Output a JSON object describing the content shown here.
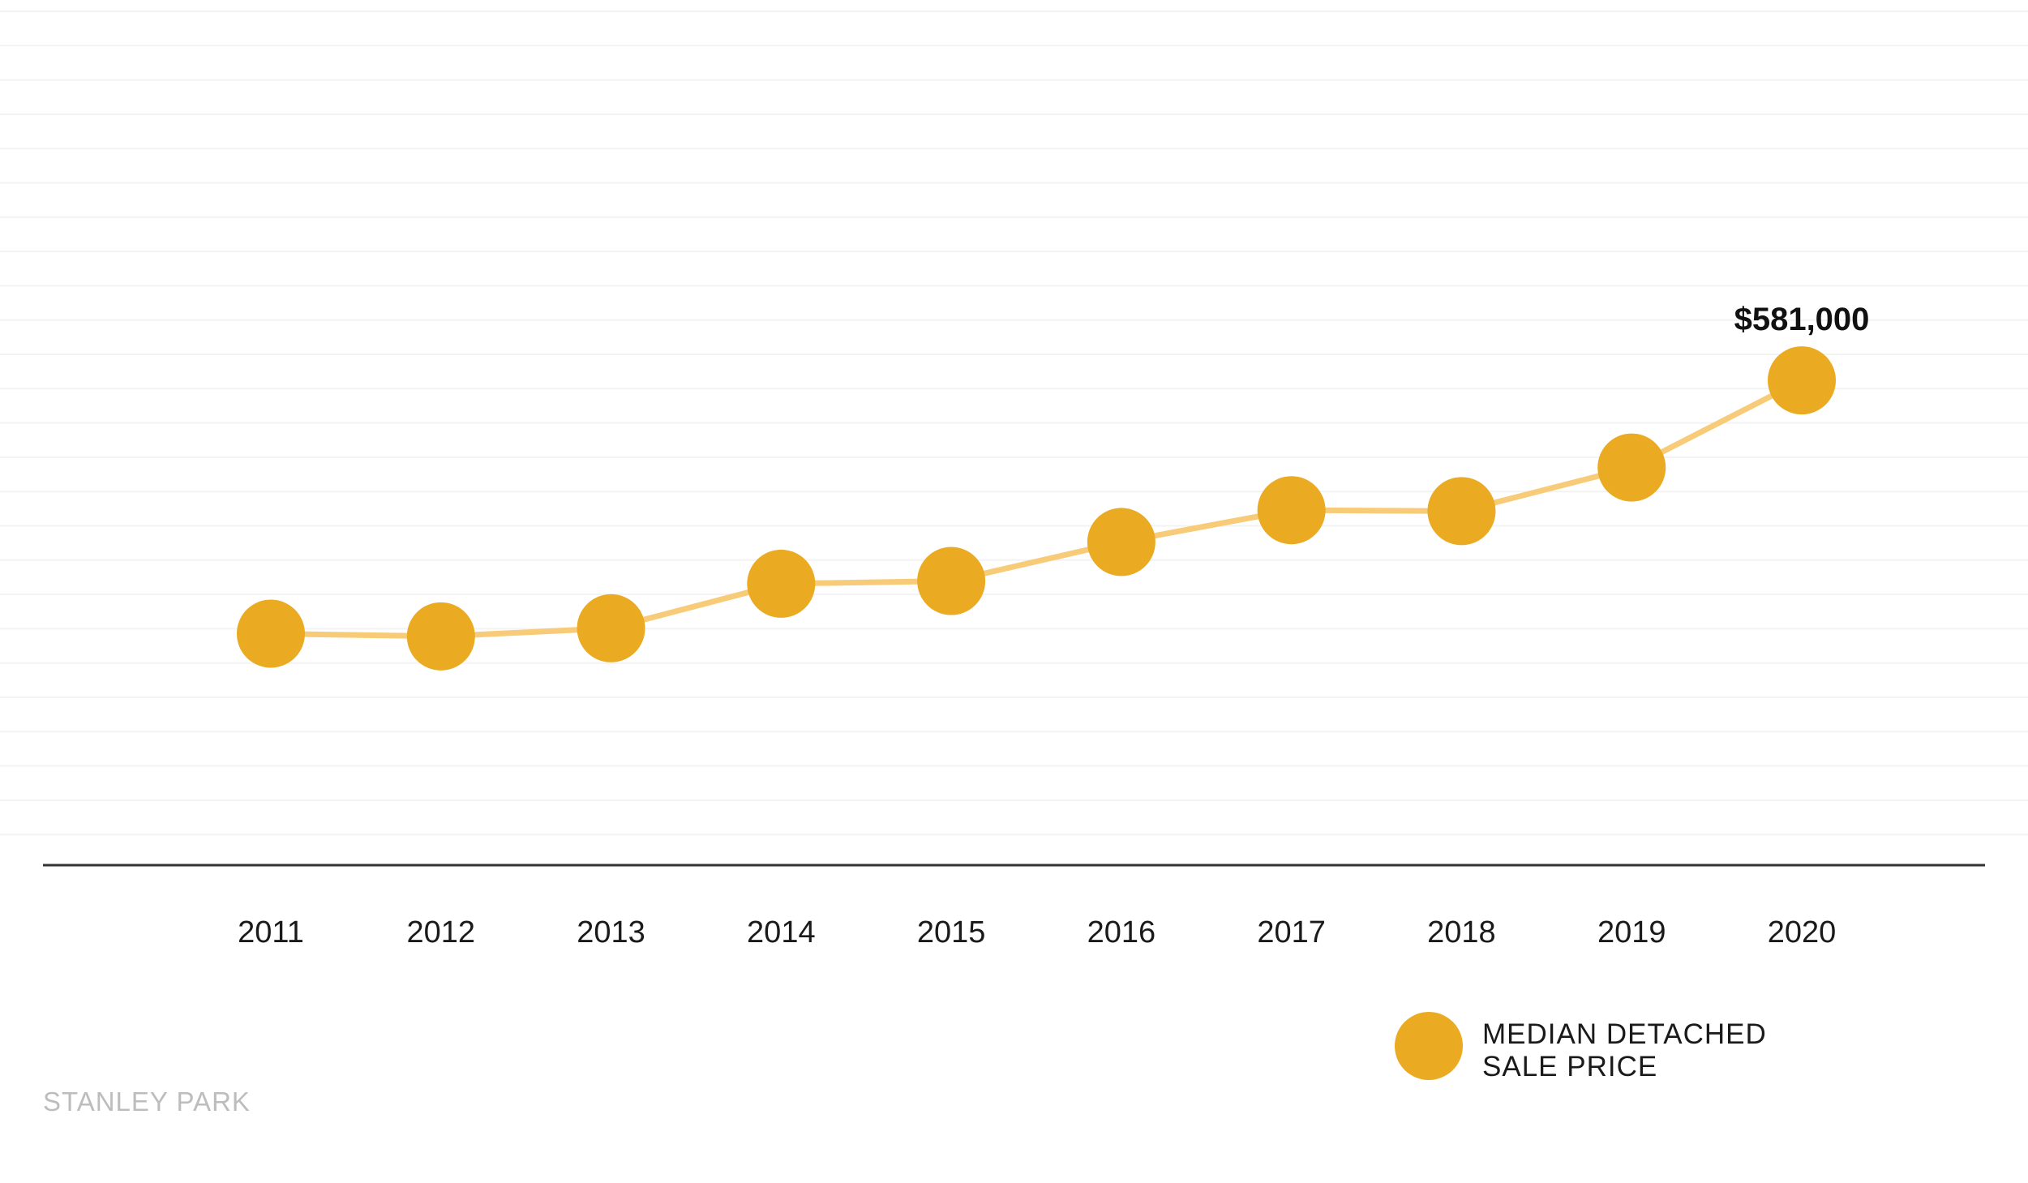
{
  "chart_data": {
    "type": "line",
    "x": [
      "2011",
      "2012",
      "2013",
      "2014",
      "2015",
      "2016",
      "2017",
      "2018",
      "2019",
      "2020"
    ],
    "series": [
      {
        "name": "MEDIAN DETACHED SALE PRICE",
        "legend_lines": [
          "MEDIAN DETACHED",
          "SALE PRICE"
        ],
        "values": [
          302000,
          299000,
          308000,
          357000,
          360000,
          403000,
          438000,
          437000,
          485000,
          581000
        ],
        "color": "#EAAA22",
        "line_color": "#F7CB78"
      }
    ],
    "annotations": [
      {
        "x": "2020",
        "text": "$581,000"
      }
    ],
    "ylim": [
      47000,
      1000000
    ],
    "grid": true,
    "legend": "bottom-right",
    "title": "",
    "xlabel": "",
    "ylabel": ""
  },
  "footer": {
    "label": "STANLEY PARK"
  },
  "colors": {
    "marker": "#EAAA22",
    "line": "#F7CB78",
    "axis": "#333333",
    "grid": "#f3f3f3",
    "footer": "#bdbdbd"
  }
}
